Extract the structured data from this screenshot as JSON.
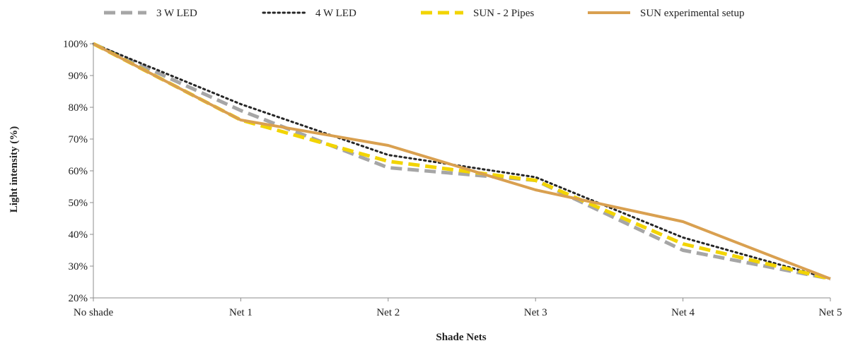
{
  "chart_data": {
    "type": "line",
    "title": "",
    "xlabel": "Shade Nets",
    "ylabel": "Light intensity (%)",
    "categories": [
      "No shade",
      "Net 1",
      "Net 2",
      "Net 3",
      "Net 4",
      "Net 5"
    ],
    "ylim": [
      20,
      100
    ],
    "y_ticks": [
      20,
      30,
      40,
      50,
      60,
      70,
      80,
      90,
      100
    ],
    "y_tick_labels": [
      "20%",
      "30%",
      "40%",
      "50%",
      "60%",
      "70%",
      "80%",
      "90%",
      "100%"
    ],
    "legend_position": "top",
    "grid": false,
    "series": [
      {
        "name": "3 W LED",
        "values": [
          100,
          79,
          61,
          57,
          35,
          26
        ],
        "color": "#a6a6a6",
        "style": "dashed"
      },
      {
        "name": "4 W LED",
        "values": [
          100,
          81,
          65,
          58,
          39,
          26
        ],
        "color": "#262626",
        "style": "dotted"
      },
      {
        "name": "SUN - 2 Pipes",
        "values": [
          100,
          76,
          63,
          57,
          37,
          26
        ],
        "color": "#f2d400",
        "style": "dashed"
      },
      {
        "name": "SUN experimental setup",
        "values": [
          100,
          76,
          68,
          54,
          44,
          26
        ],
        "color": "#d9a050",
        "style": "solid"
      }
    ]
  }
}
